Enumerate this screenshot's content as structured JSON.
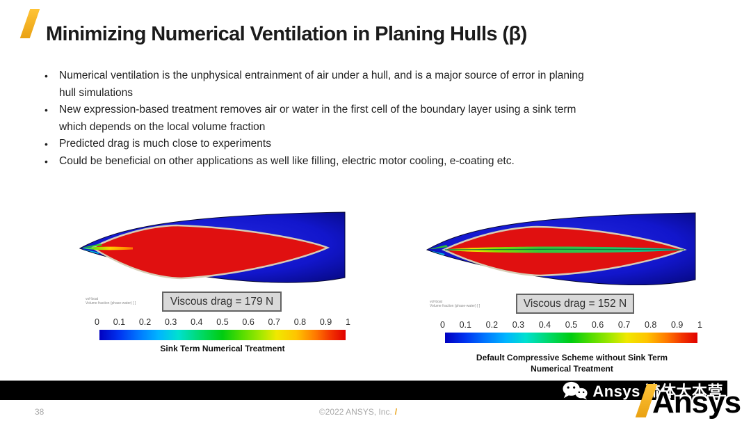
{
  "slide": {
    "title": "Minimizing Numerical Ventilation in Planing Hulls (β)",
    "bullets": [
      "Numerical ventilation is the unphysical entrainment of air under a hull, and is a major source of error in planing hull simulations",
      "New expression-based treatment removes air or water in the first cell of the boundary layer using a sink term which depends on the local volume fraction",
      "Predicted drag is much close to experiments",
      "Could be beneficial on other applications as well like filling, electric motor cooling, e-coating etc."
    ]
  },
  "figures": {
    "scale_ticks": [
      "0",
      "0.1",
      "0.2",
      "0.3",
      "0.4",
      "0.5",
      "0.6",
      "0.7",
      "0.8",
      "0.9",
      "1"
    ],
    "left": {
      "legend_title": "vof-boat",
      "legend_subtitle": "Volume fraction (phase-water) [ ]",
      "drag_label": "Viscous drag = 179 N",
      "caption": "Sink Term Numerical Treatment"
    },
    "right": {
      "legend_title": "vof-boat",
      "legend_subtitle": "Volume fraction (phase-water) [ ]",
      "drag_label": "Viscous drag = 152 N",
      "caption_line1": "Default Compressive Scheme without Sink Term",
      "caption_line2": "Numerical Treatment"
    }
  },
  "footer": {
    "page_number": "38",
    "copyright": "©2022 ANSYS, Inc.",
    "watermark_text": "Ansys 流体大本营",
    "logo_text": "Ansys"
  },
  "colors": {
    "accent_gold": "#F2AC1E",
    "hull_blue": "#1216CC",
    "wetted_red": "#E01010",
    "footer_bar": "#000000",
    "muted_gray": "#A9A9A9",
    "drag_box_bg": "#D9D9D9"
  }
}
